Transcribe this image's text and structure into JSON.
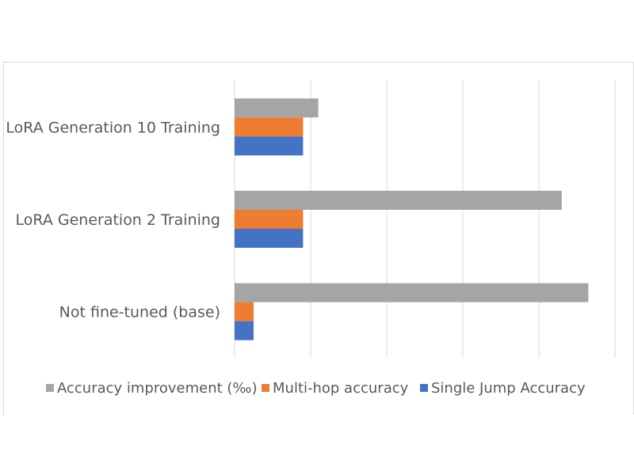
{
  "chart_data": {
    "type": "bar",
    "orientation": "horizontal",
    "categories": [
      "LoRA Generation 10 Training",
      "LoRA Generation 2 Training",
      "Not fine-tuned (base)"
    ],
    "series": [
      {
        "name": "Accuracy improvement (‰)",
        "values": [
          0.11,
          0.43,
          0.465
        ],
        "color": "#a5a5a5"
      },
      {
        "name": "Multi-hop accuracy",
        "values": [
          0.09,
          0.09,
          0.025
        ],
        "color": "#ed7d31"
      },
      {
        "name": "Single Jump Accuracy",
        "values": [
          0.09,
          0.09,
          0.025
        ],
        "color": "#4472c4"
      }
    ],
    "xlim": [
      0,
      0.5
    ],
    "grid": true,
    "tick_labels_shown": false,
    "legend_position": "bottom"
  }
}
